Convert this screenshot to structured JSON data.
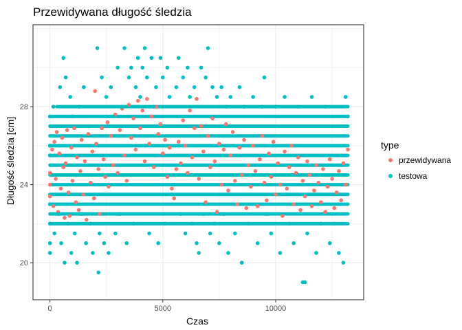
{
  "chart_data": {
    "type": "scatter",
    "title": "Przewidywana długość śledzia",
    "xlabel": "Czas",
    "ylabel": "Długość śledzia [cm]",
    "xlim": [
      -750,
      13900
    ],
    "ylim": [
      18.1,
      32.2
    ],
    "xticks": [
      0,
      5000,
      10000
    ],
    "xtick_labels": [
      "0",
      "5000",
      "10000"
    ],
    "yticks": [
      20,
      24,
      28
    ],
    "ytick_labels": [
      "20",
      "24",
      "28"
    ],
    "grid": true,
    "legend": {
      "title": "type",
      "placement": "right"
    },
    "series": [
      {
        "name": "przewidywana",
        "color": "#F8766D",
        "points": [
          [
            0,
            23.4
          ],
          [
            0,
            24.0
          ],
          [
            0,
            24.6
          ],
          [
            100,
            25.8
          ],
          [
            150,
            22.9
          ],
          [
            200,
            26.2
          ],
          [
            260,
            24.3
          ],
          [
            300,
            26.7
          ],
          [
            360,
            22.6
          ],
          [
            420,
            25.6
          ],
          [
            480,
            23.8
          ],
          [
            540,
            26.4
          ],
          [
            600,
            24.9
          ],
          [
            650,
            22.3
          ],
          [
            700,
            25.1
          ],
          [
            760,
            26.8
          ],
          [
            820,
            23.6
          ],
          [
            880,
            22.4
          ],
          [
            950,
            25.9
          ],
          [
            1000,
            24.2
          ],
          [
            1080,
            26.9
          ],
          [
            1150,
            23.1
          ],
          [
            1200,
            25.4
          ],
          [
            1280,
            22.7
          ],
          [
            1350,
            24.7
          ],
          [
            1400,
            26.3
          ],
          [
            1480,
            23.5
          ],
          [
            1550,
            25.2
          ],
          [
            1620,
            22.2
          ],
          [
            1700,
            26.6
          ],
          [
            1800,
            24.1
          ],
          [
            1880,
            25.7
          ],
          [
            1950,
            23.3
          ],
          [
            2000,
            28.8
          ],
          [
            2050,
            26.1
          ],
          [
            2150,
            24.8
          ],
          [
            2200,
            22.5
          ],
          [
            2300,
            26.9
          ],
          [
            2380,
            25.3
          ],
          [
            2450,
            24.4
          ],
          [
            2550,
            27.2
          ],
          [
            2600,
            23.9
          ],
          [
            2700,
            26.5
          ],
          [
            2800,
            25.0
          ],
          [
            2900,
            27.6
          ],
          [
            3000,
            24.6
          ],
          [
            3100,
            26.8
          ],
          [
            3200,
            27.9
          ],
          [
            3300,
            25.5
          ],
          [
            3400,
            24.2
          ],
          [
            3500,
            28.1
          ],
          [
            3600,
            26.4
          ],
          [
            3700,
            27.4
          ],
          [
            3800,
            25.8
          ],
          [
            3900,
            28.3
          ],
          [
            4000,
            26.9
          ],
          [
            4100,
            27.8
          ],
          [
            4200,
            25.2
          ],
          [
            4300,
            28.4
          ],
          [
            4400,
            26.1
          ],
          [
            4500,
            27.5
          ],
          [
            4600,
            24.9
          ],
          [
            4700,
            28.0
          ],
          [
            4800,
            26.6
          ],
          [
            4900,
            27.1
          ],
          [
            5000,
            25.6
          ],
          [
            5100,
            26.3
          ],
          [
            5200,
            24.4
          ],
          [
            5300,
            25.9
          ],
          [
            5400,
            23.8
          ],
          [
            5500,
            23.3
          ],
          [
            5600,
            24.8
          ],
          [
            5700,
            26.2
          ],
          [
            5800,
            25.1
          ],
          [
            5900,
            27.3
          ],
          [
            6000,
            26.0
          ],
          [
            6100,
            24.6
          ],
          [
            6200,
            27.8
          ],
          [
            6300,
            25.4
          ],
          [
            6400,
            26.9
          ],
          [
            6500,
            28.4
          ],
          [
            6600,
            24.3
          ],
          [
            6700,
            27.0
          ],
          [
            6800,
            25.7
          ],
          [
            6900,
            23.1
          ],
          [
            7000,
            26.5
          ],
          [
            7100,
            24.9
          ],
          [
            7200,
            27.4
          ],
          [
            7300,
            25.2
          ],
          [
            7400,
            22.6
          ],
          [
            7500,
            26.1
          ],
          [
            7600,
            24.0
          ],
          [
            7700,
            25.8
          ],
          [
            7800,
            27.1
          ],
          [
            7900,
            23.7
          ],
          [
            8000,
            25.5
          ],
          [
            8100,
            26.7
          ],
          [
            8200,
            24.2
          ],
          [
            8300,
            23.0
          ],
          [
            8400,
            25.9
          ],
          [
            8500,
            24.5
          ],
          [
            8600,
            26.3
          ],
          [
            8700,
            22.8
          ],
          [
            8800,
            25.0
          ],
          [
            8900,
            23.9
          ],
          [
            9000,
            26.0
          ],
          [
            9100,
            24.7
          ],
          [
            9200,
            22.9
          ],
          [
            9300,
            25.3
          ],
          [
            9400,
            26.5
          ],
          [
            9500,
            24.1
          ],
          [
            9600,
            23.2
          ],
          [
            9700,
            25.6
          ],
          [
            9800,
            24.4
          ],
          [
            9900,
            26.2
          ],
          [
            10000,
            23.5
          ],
          [
            10100,
            25.1
          ],
          [
            10200,
            24.0
          ],
          [
            10300,
            22.4
          ],
          [
            10400,
            25.7
          ],
          [
            10500,
            23.8
          ],
          [
            10600,
            24.9
          ],
          [
            10700,
            26.0
          ],
          [
            10800,
            23.0
          ],
          [
            10900,
            24.6
          ],
          [
            11000,
            25.4
          ],
          [
            11100,
            22.7
          ],
          [
            11200,
            24.2
          ],
          [
            11300,
            23.4
          ],
          [
            11400,
            25.2
          ],
          [
            11500,
            24.5
          ],
          [
            11600,
            22.9
          ],
          [
            11700,
            23.7
          ],
          [
            11800,
            25.0
          ],
          [
            11900,
            24.1
          ],
          [
            12000,
            23.1
          ],
          [
            12100,
            24.8
          ],
          [
            12200,
            22.6
          ],
          [
            12300,
            23.9
          ],
          [
            12400,
            25.3
          ],
          [
            12500,
            24.3
          ],
          [
            12600,
            22.8
          ],
          [
            12700,
            23.6
          ],
          [
            12800,
            24.7
          ],
          [
            12900,
            23.2
          ],
          [
            13000,
            25.1
          ],
          [
            13100,
            24.0
          ],
          [
            13200,
            25.8
          ]
        ]
      },
      {
        "name": "testowa",
        "color": "#00BFC4",
        "points": [
          [
            0,
            27.5
          ],
          [
            0,
            26.0
          ],
          [
            0,
            25.5
          ],
          [
            0,
            23.0
          ],
          [
            0,
            22.0
          ],
          [
            0,
            21.0
          ],
          [
            0,
            20.5
          ],
          [
            150,
            28.0
          ],
          [
            200,
            21.5
          ],
          [
            300,
            27.0
          ],
          [
            380,
            22.5
          ],
          [
            450,
            29.0
          ],
          [
            500,
            21.0
          ],
          [
            600,
            30.5
          ],
          [
            650,
            20.0
          ],
          [
            700,
            29.5
          ],
          [
            800,
            22.0
          ],
          [
            900,
            28.5
          ],
          [
            950,
            20.5
          ],
          [
            1000,
            27.5
          ],
          [
            1100,
            21.5
          ],
          [
            1200,
            20.0
          ],
          [
            1300,
            28.0
          ],
          [
            1400,
            22.5
          ],
          [
            1500,
            29.0
          ],
          [
            1600,
            21.0
          ],
          [
            1700,
            27.0
          ],
          [
            1800,
            22.0
          ],
          [
            1900,
            20.5
          ],
          [
            2100,
            31.0
          ],
          [
            2150,
            19.5
          ],
          [
            2200,
            21.5
          ],
          [
            2300,
            29.5
          ],
          [
            2400,
            21.0
          ],
          [
            2500,
            28.5
          ],
          [
            2600,
            20.5
          ],
          [
            2700,
            29.0
          ],
          [
            2800,
            27.5
          ],
          [
            2900,
            21.5
          ],
          [
            3000,
            30.0
          ],
          [
            3100,
            22.5
          ],
          [
            3200,
            28.0
          ],
          [
            3300,
            31.0
          ],
          [
            3400,
            21.0
          ],
          [
            3500,
            29.5
          ],
          [
            3600,
            30.0
          ],
          [
            3700,
            22.0
          ],
          [
            3800,
            29.0
          ],
          [
            3900,
            30.5
          ],
          [
            4000,
            28.5
          ],
          [
            4100,
            30.0
          ],
          [
            4200,
            31.0
          ],
          [
            4300,
            29.5
          ],
          [
            4400,
            21.5
          ],
          [
            4500,
            30.5
          ],
          [
            4600,
            28.0
          ],
          [
            4700,
            29.0
          ],
          [
            4800,
            21.0
          ],
          [
            4900,
            30.5
          ],
          [
            5000,
            29.5
          ],
          [
            5100,
            22.0
          ],
          [
            5200,
            30.0
          ],
          [
            5300,
            28.5
          ],
          [
            5400,
            23.5
          ],
          [
            5500,
            24.0
          ],
          [
            5600,
            29.0
          ],
          [
            5700,
            30.5
          ],
          [
            5800,
            22.5
          ],
          [
            5900,
            29.5
          ],
          [
            6000,
            21.5
          ],
          [
            6100,
            30.0
          ],
          [
            6200,
            28.5
          ],
          [
            6300,
            22.0
          ],
          [
            6400,
            29.0
          ],
          [
            6500,
            21.0
          ],
          [
            6600,
            20.5
          ],
          [
            6700,
            30.0
          ],
          [
            6800,
            22.5
          ],
          [
            6900,
            29.5
          ],
          [
            7000,
            31.0
          ],
          [
            7100,
            21.5
          ],
          [
            7200,
            29.0
          ],
          [
            7300,
            22.0
          ],
          [
            7400,
            28.5
          ],
          [
            7500,
            21.0
          ],
          [
            7600,
            29.0
          ],
          [
            7700,
            22.5
          ],
          [
            7800,
            28.0
          ],
          [
            7900,
            20.5
          ],
          [
            8000,
            28.5
          ],
          [
            8200,
            21.5
          ],
          [
            8400,
            29.0
          ],
          [
            8500,
            20.0
          ],
          [
            8600,
            28.0
          ],
          [
            8800,
            22.0
          ],
          [
            9000,
            28.5
          ],
          [
            9200,
            21.0
          ],
          [
            9400,
            28.0
          ],
          [
            9500,
            29.5
          ],
          [
            9600,
            22.5
          ],
          [
            9800,
            21.5
          ],
          [
            10000,
            28.0
          ],
          [
            10200,
            20.5
          ],
          [
            10400,
            28.5
          ],
          [
            10600,
            22.0
          ],
          [
            10800,
            21.0
          ],
          [
            11000,
            28.0
          ],
          [
            11200,
            19.0
          ],
          [
            11300,
            19.0
          ],
          [
            11400,
            21.5
          ],
          [
            11600,
            28.5
          ],
          [
            11800,
            20.5
          ],
          [
            12000,
            22.0
          ],
          [
            12200,
            28.0
          ],
          [
            12400,
            21.0
          ],
          [
            12600,
            22.0
          ],
          [
            12800,
            20.5
          ],
          [
            13000,
            20.0
          ],
          [
            13100,
            28.5
          ],
          [
            13200,
            27.5
          ]
        ],
        "bands": [
          {
            "y": 28.0,
            "x": [
              300,
              13200
            ]
          },
          {
            "y": 27.5,
            "x": [
              0,
              13200
            ]
          },
          {
            "y": 27.0,
            "x": [
              0,
              13200
            ]
          },
          {
            "y": 26.5,
            "x": [
              0,
              13200
            ]
          },
          {
            "y": 26.0,
            "x": [
              0,
              13200
            ]
          },
          {
            "y": 25.5,
            "x": [
              0,
              13200
            ]
          },
          {
            "y": 25.0,
            "x": [
              0,
              13200
            ]
          },
          {
            "y": 24.5,
            "x": [
              0,
              13200
            ]
          },
          {
            "y": 24.0,
            "x": [
              0,
              13200
            ]
          },
          {
            "y": 23.5,
            "x": [
              0,
              13200
            ]
          },
          {
            "y": 23.0,
            "x": [
              0,
              13200
            ]
          },
          {
            "y": 22.5,
            "x": [
              0,
              13200
            ]
          },
          {
            "y": 22.0,
            "x": [
              0,
              13200
            ]
          }
        ]
      }
    ]
  }
}
